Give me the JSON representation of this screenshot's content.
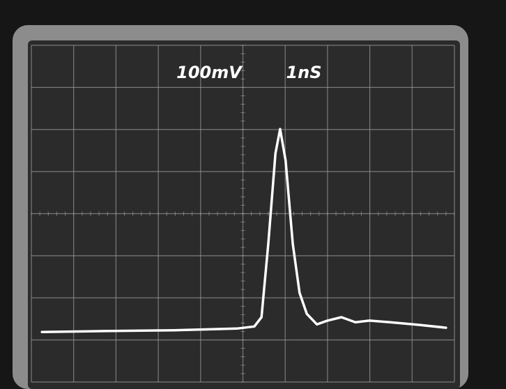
{
  "chart_data": {
    "type": "line",
    "annotations": [
      "100mV",
      "1nS"
    ],
    "x": [
      0.25,
      1.73,
      3.38,
      4.86,
      5.27,
      5.44,
      5.6,
      5.77,
      5.88,
      6.01,
      6.18,
      6.34,
      6.51,
      6.75,
      7.0,
      7.33,
      7.66,
      7.99,
      8.48,
      9.14,
      9.8
    ],
    "values": [
      119,
      121,
      123,
      127,
      132,
      154,
      328,
      543,
      601,
      526,
      328,
      212,
      162,
      137,
      146,
      154,
      142,
      146,
      142,
      136,
      129
    ],
    "color": "#ffffff",
    "xlim": [
      0,
      10
    ],
    "ylim": [
      0,
      800
    ],
    "grid": true
  }
}
